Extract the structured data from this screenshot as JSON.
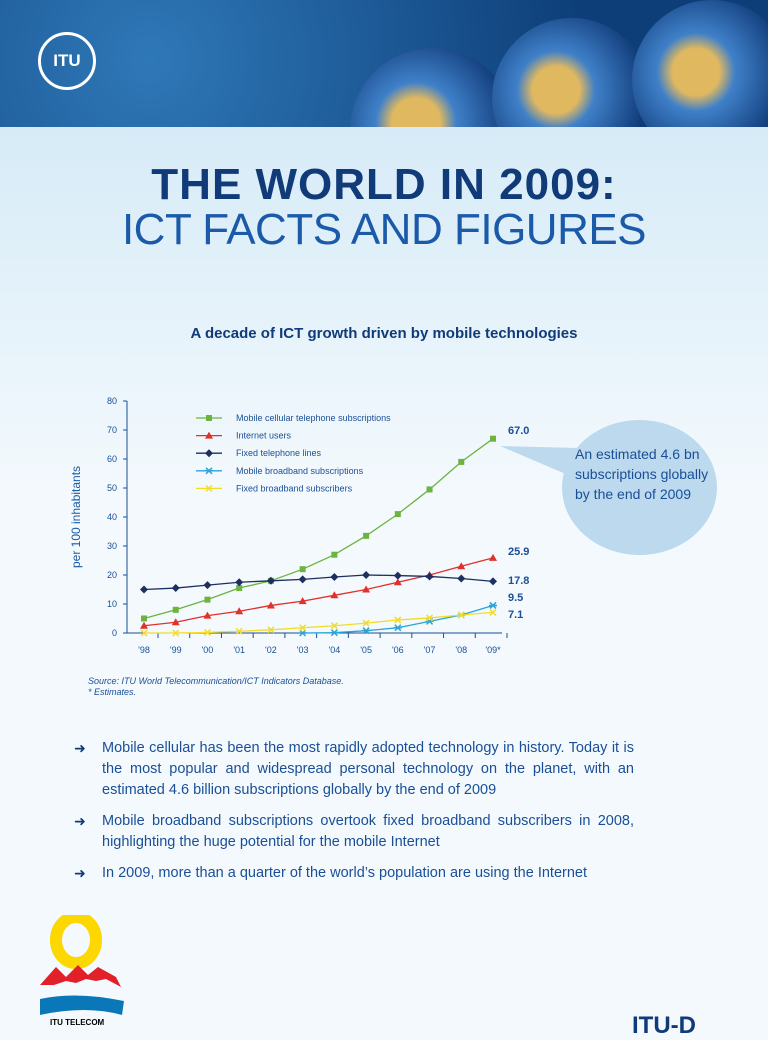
{
  "header": {
    "logo": "ITU"
  },
  "title_line1": "THE WORLD IN 2009:",
  "title_line2": "ICT FACTS AND FIGURES",
  "chart_data": {
    "type": "line",
    "title": "A decade of ICT growth driven by mobile technologies",
    "ylabel": "per 100 inhabitants",
    "ylim": [
      0,
      80
    ],
    "yticks": [
      "0",
      "10",
      "20",
      "30",
      "40",
      "50",
      "60",
      "70",
      "80"
    ],
    "categories": [
      "'98",
      "'99",
      "'00",
      "'01",
      "'02",
      "'03",
      "'04",
      "'05",
      "'06",
      "'07",
      "'08",
      "'09*"
    ],
    "legend_position": "top-left",
    "series": [
      {
        "name": "Mobile cellular telephone subscriptions",
        "color": "#6cb33f",
        "marker": "square",
        "values": [
          5,
          8,
          11.5,
          15.5,
          18,
          22,
          27,
          33.5,
          41,
          49.5,
          59,
          67.0
        ],
        "end_label": "67.0"
      },
      {
        "name": "Internet users",
        "color": "#e2302a",
        "marker": "triangle",
        "values": [
          2.5,
          3.7,
          6,
          7.5,
          9.5,
          11,
          13,
          15,
          17.5,
          20,
          23,
          25.9
        ],
        "end_label": "25.9"
      },
      {
        "name": "Fixed telephone lines",
        "color": "#1c2f5e",
        "marker": "diamond",
        "values": [
          15,
          15.5,
          16.5,
          17.5,
          18,
          18.5,
          19.3,
          20,
          19.8,
          19.5,
          18.8,
          17.8
        ],
        "end_label": "17.8"
      },
      {
        "name": "Mobile broadband subscriptions",
        "color": "#2aa3d8",
        "marker": "asterisk",
        "values": [
          null,
          null,
          null,
          null,
          null,
          0,
          0.1,
          0.8,
          1.8,
          4,
          6.2,
          9.5
        ],
        "end_label": "9.5"
      },
      {
        "name": "Fixed broadband subscribers",
        "color": "#f2dc2a",
        "marker": "x",
        "values": [
          0,
          0,
          0.2,
          0.6,
          1.1,
          1.8,
          2.5,
          3.4,
          4.5,
          5.2,
          6.2,
          7.1
        ],
        "end_label": "7.1"
      }
    ]
  },
  "callout": "An estimated 4.6 bn subscriptions globally by the end of 2009",
  "source": [
    "Source: ITU World Telecommunication/ICT Indicators Database.",
    "* Estimates."
  ],
  "bullets": [
    "Mobile cellular has been the most rapidly adopted technology in history. Today it is the most popular and widespread personal technology on the planet, with an estimated 4.6 billion subscriptions globally by the end of 2009",
    "Mobile broadband subscriptions overtook fixed broadband subscribers in 2008, highlighting the huge potential for the mobile Internet",
    "In 2009, more than a quarter of the world’s population are using the Internet"
  ],
  "footer": {
    "telecom_label": "ITU TELECOM",
    "itud_label": "ITU-D"
  }
}
